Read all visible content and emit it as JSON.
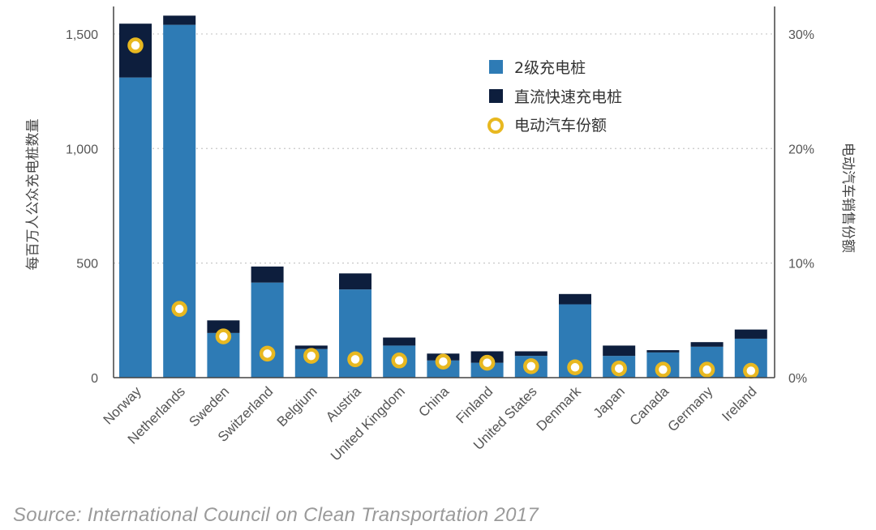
{
  "chart_data": {
    "type": "bar",
    "stacked": true,
    "categories": [
      "Norway",
      "Netherlands",
      "Sweden",
      "Switzerland",
      "Belgium",
      "Austria",
      "United Kingdom",
      "China",
      "Finland",
      "United States",
      "Denmark",
      "Japan",
      "Canada",
      "Germany",
      "Ireland"
    ],
    "series": [
      {
        "name": "2级充电桩",
        "axis": "left",
        "color": "#2e7bb5",
        "values": [
          1310,
          1540,
          195,
          415,
          125,
          385,
          140,
          75,
          65,
          95,
          320,
          95,
          110,
          135,
          170
        ]
      },
      {
        "name": "直流快速充电桩",
        "axis": "left",
        "color": "#0d1e3d",
        "values": [
          235,
          40,
          55,
          70,
          15,
          70,
          35,
          30,
          50,
          20,
          45,
          45,
          10,
          20,
          40
        ]
      },
      {
        "name": "电动汽车份额",
        "axis": "right",
        "type": "marker",
        "marker_color": "#e8b820",
        "values": [
          29,
          6,
          3.6,
          2.1,
          1.9,
          1.6,
          1.5,
          1.4,
          1.3,
          1.0,
          0.9,
          0.8,
          0.7,
          0.7,
          0.6
        ]
      }
    ],
    "ylabel": "每百万人公众充电桩数量",
    "ylabel_right": "电动汽车销售份额",
    "ylim": [
      0,
      1620
    ],
    "ylim_right": [
      0,
      32.4
    ],
    "yticks": [
      "0",
      "500",
      "1,000",
      "1,500"
    ],
    "yticks_right": [
      "0%",
      "10%",
      "20%",
      "30%"
    ],
    "ytick_values": [
      0,
      500,
      1000,
      1500
    ],
    "ytick_right_values": [
      0,
      10,
      20,
      30
    ],
    "grid": "horizontal dotted",
    "legend_position": "top-right"
  },
  "source": "Source: International Council on Clean Transportation 2017"
}
